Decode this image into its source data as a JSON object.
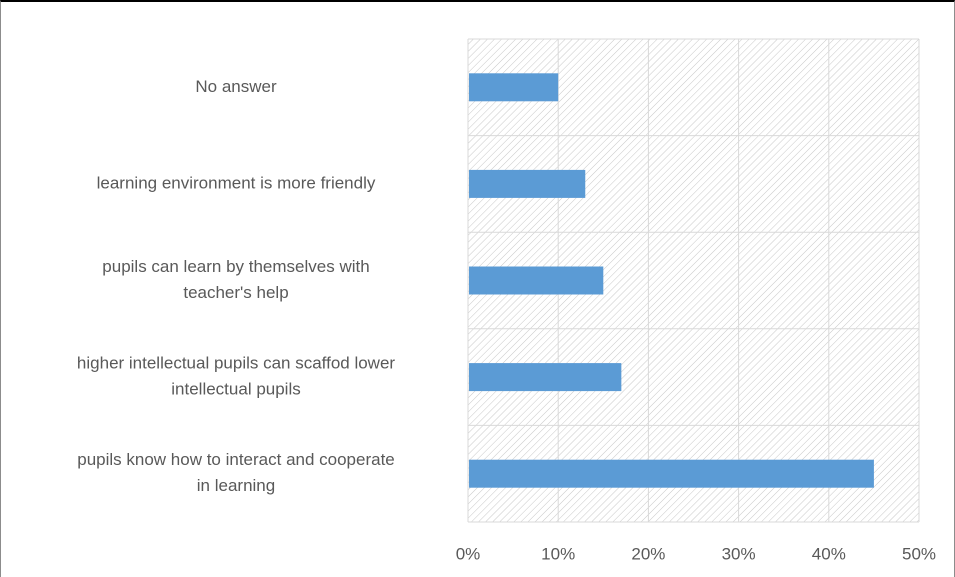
{
  "chart_data": {
    "type": "bar",
    "orientation": "horizontal",
    "categories": [
      [
        "No answer"
      ],
      [
        "learning environment is more friendly"
      ],
      [
        "pupils can learn by themselves with",
        "teacher's help"
      ],
      [
        "higher intellectual pupils can scaffod lower",
        "intellectual pupils"
      ],
      [
        "pupils know how to interact and cooperate",
        "in learning"
      ]
    ],
    "values": [
      0.1,
      0.13,
      0.15,
      0.17,
      0.45
    ],
    "xlim": [
      0,
      0.5
    ],
    "ticks": [
      0,
      0.1,
      0.2,
      0.3,
      0.4,
      0.5
    ],
    "tick_labels": [
      "0%",
      "10%",
      "20%",
      "30%",
      "40%",
      "50%"
    ],
    "title": "",
    "xlabel": "",
    "ylabel": "",
    "grid": true,
    "legend": false,
    "colors": {
      "bar": "#5b9bd5",
      "grid": "#d9d9d9",
      "hatch": "#c8c8c8",
      "text": "#595959"
    }
  }
}
